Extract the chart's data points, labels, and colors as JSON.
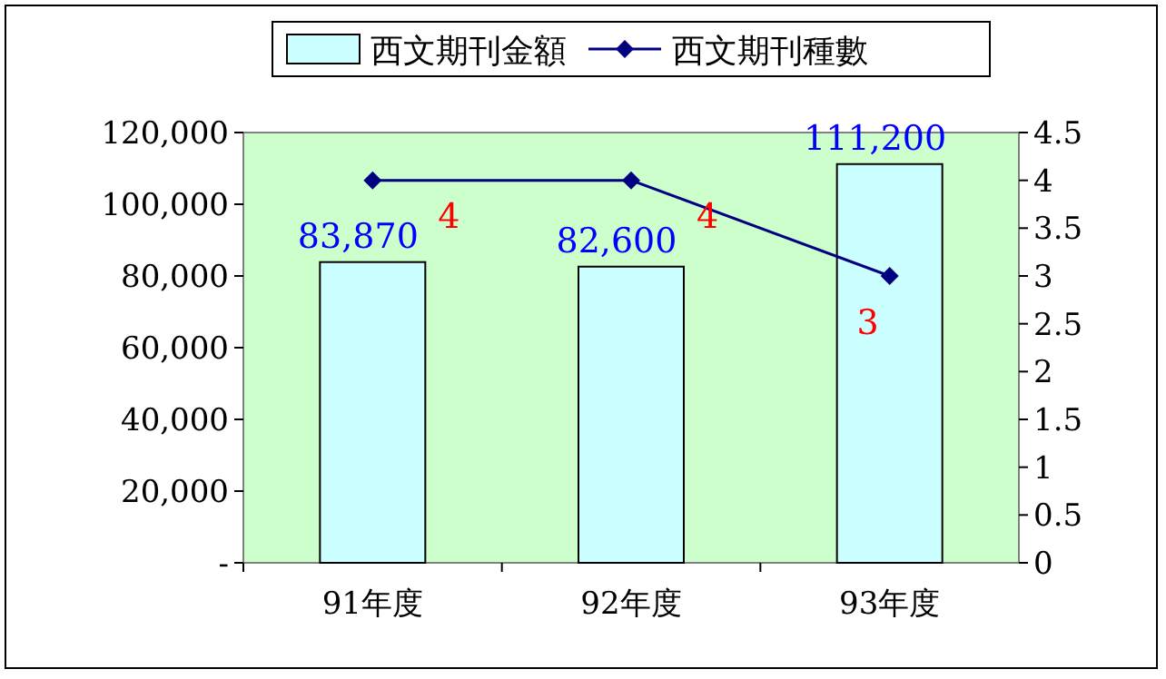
{
  "chart_data": {
    "type": "bar",
    "categories": [
      "91年度",
      "92年度",
      "93年度"
    ],
    "series": [
      {
        "name": "西文期刊金額",
        "color": "#ccffff",
        "values": [
          83870,
          82600,
          111200
        ],
        "value_labels": [
          "83,870",
          "82,600",
          "111,200"
        ]
      },
      {
        "name": "西文期刊種數",
        "type": "line",
        "axis": "y2",
        "color": "#000080",
        "marker": "diamond",
        "values": [
          4,
          4,
          3
        ],
        "value_labels": [
          "4",
          "4",
          "3"
        ]
      }
    ],
    "ylim": [
      0,
      120000
    ],
    "yticks": [
      {
        "value": 0,
        "label": "-"
      },
      {
        "value": 20000,
        "label": "20,000"
      },
      {
        "value": 40000,
        "label": "40,000"
      },
      {
        "value": 60000,
        "label": "60,000"
      },
      {
        "value": 80000,
        "label": "80,000"
      },
      {
        "value": 100000,
        "label": "100,000"
      },
      {
        "value": 120000,
        "label": "120,000"
      }
    ],
    "y2lim": [
      0,
      4.5
    ],
    "y2ticks": [
      0,
      0.5,
      1,
      1.5,
      2,
      2.5,
      3,
      3.5,
      4,
      4.5
    ],
    "grid": false,
    "legend": "top"
  }
}
